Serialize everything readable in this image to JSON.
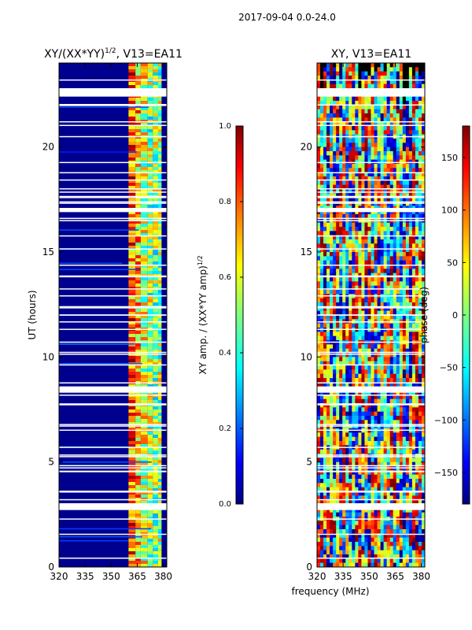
{
  "figure": {
    "suptitle": "2017-09-04 0.0-24.0",
    "xlabel_shared": "frequency (MHz)"
  },
  "colors": {
    "jet": [
      "#00007f",
      "#0000ff",
      "#007fff",
      "#00ffff",
      "#7fff7f",
      "#ffff00",
      "#ff7f00",
      "#ff0000",
      "#7f0000"
    ]
  },
  "chart_data": [
    {
      "type": "heatmap",
      "title_prefix": "XY/(XX*YY)",
      "title_exp": "1/2",
      "title_suffix": ", V13=EA11",
      "xlabel": "frequency (MHz)",
      "ylabel": "UT (hours)",
      "xlim": [
        320,
        382
      ],
      "ylim": [
        0,
        24
      ],
      "xticks": [
        320,
        335,
        350,
        365,
        380
      ],
      "yticks": [
        0,
        5,
        10,
        15,
        20
      ],
      "hot_bands_mhz": [
        [
          360,
          364
        ],
        [
          364,
          367
        ],
        [
          367,
          371
        ],
        [
          371,
          374
        ],
        [
          374,
          377
        ],
        [
          377,
          379
        ]
      ],
      "gap_hours": [
        [
          2.75,
          3.0
        ],
        [
          8.3,
          8.6
        ],
        [
          16.9,
          17.1
        ],
        [
          22.4,
          22.8
        ],
        [
          21.95,
          22.05
        ]
      ],
      "colorbar": {
        "label_main": "XY amp. / (XX*YY amp)",
        "label_exp": "1/2",
        "range": [
          0.0,
          1.0
        ],
        "ticks": [
          "0.0",
          "0.2",
          "0.4",
          "0.6",
          "0.8",
          "1.0"
        ]
      }
    },
    {
      "type": "heatmap",
      "title": "XY, V13=EA11",
      "xlabel": "frequency (MHz)",
      "ylabel": "",
      "xlim": [
        320,
        382
      ],
      "ylim": [
        0,
        24
      ],
      "xticks": [
        320,
        335,
        350,
        365,
        380
      ],
      "yticks": [
        0,
        5,
        10,
        15,
        20
      ],
      "gap_hours": [
        [
          2.75,
          3.0
        ],
        [
          8.3,
          8.6
        ],
        [
          16.9,
          17.1
        ],
        [
          22.4,
          22.8
        ]
      ],
      "colorbar": {
        "label": "phase (deg)",
        "range": [
          -180,
          180
        ],
        "ticks": [
          "−150",
          "−100",
          "−50",
          "0",
          "50",
          "100",
          "150"
        ],
        "tick_values": [
          -150,
          -100,
          -50,
          0,
          50,
          100,
          150
        ]
      }
    }
  ]
}
